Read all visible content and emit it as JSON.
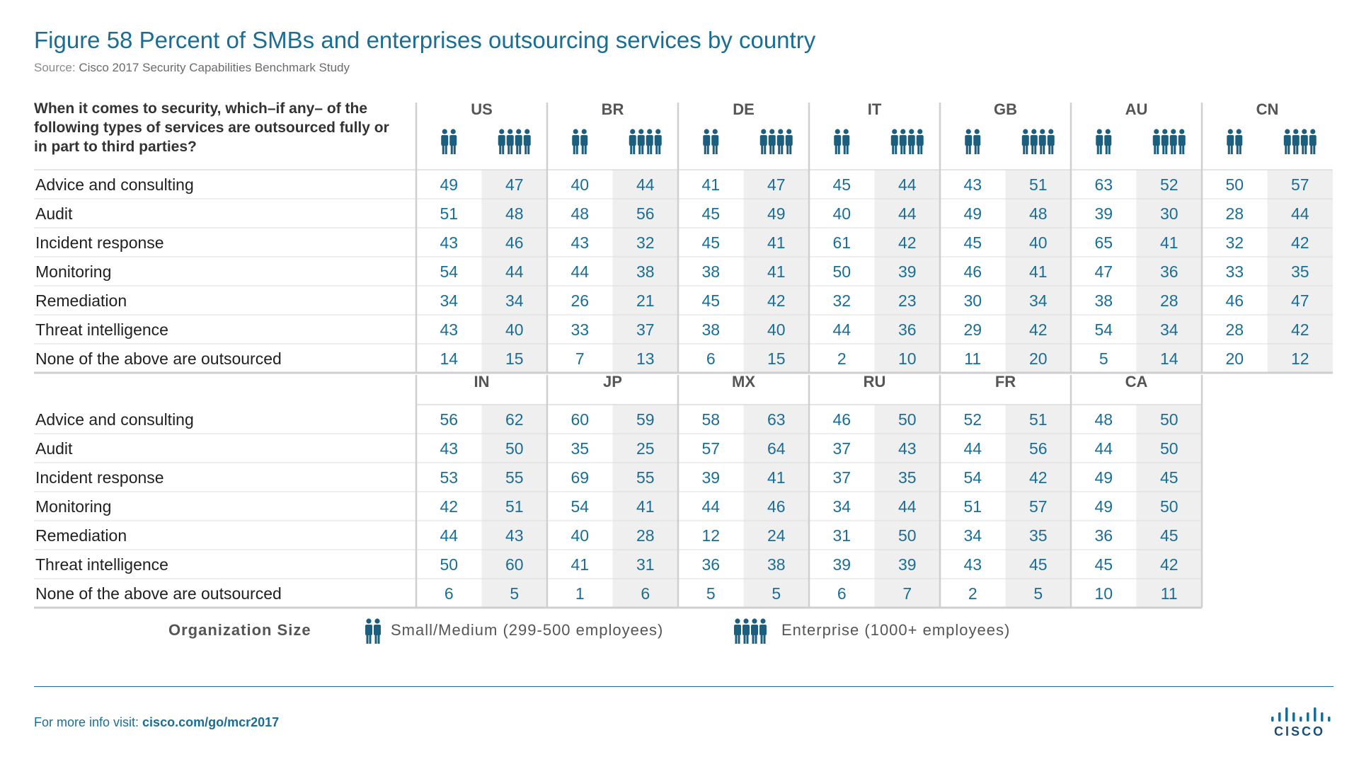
{
  "title": "Figure 58  Percent of SMBs and enterprises outsourcing services by country",
  "source_label": "Source:",
  "source_text": "Cisco 2017 Security Capabilities Benchmark Study",
  "question": "When it comes to security, which–if any– of the following types of services are outsourced fully or in part to third parties?",
  "legend": {
    "label": "Organization Size",
    "small": "Small/Medium (299-500 employees)",
    "enterprise": "Enterprise (1000+ employees)"
  },
  "footer": {
    "prefix": "For more info visit: ",
    "link": "cisco.com/go/mcr2017"
  },
  "logo_text": "CISCO",
  "colors": {
    "accent": "#1a6e96",
    "icon": "#1c5e7e",
    "shade": "#efefef",
    "rule": "#cfcfcf"
  },
  "chart_data": {
    "type": "table",
    "row_labels": [
      "Advice and consulting",
      "Audit",
      "Incident response",
      "Monitoring",
      "Remediation",
      "Threat intelligence",
      "None of the above are outsourced"
    ],
    "series_labels": [
      "Small/Medium (299-500 employees)",
      "Enterprise (1000+ employees)"
    ],
    "panels": [
      {
        "countries": [
          {
            "code": "US",
            "smb": [
              49,
              51,
              43,
              54,
              34,
              43,
              14
            ],
            "ent": [
              47,
              48,
              46,
              44,
              34,
              40,
              15
            ]
          },
          {
            "code": "BR",
            "smb": [
              40,
              48,
              43,
              44,
              26,
              33,
              7
            ],
            "ent": [
              44,
              56,
              32,
              38,
              21,
              37,
              13
            ]
          },
          {
            "code": "DE",
            "smb": [
              41,
              45,
              45,
              38,
              45,
              38,
              6
            ],
            "ent": [
              47,
              49,
              41,
              41,
              42,
              40,
              15
            ]
          },
          {
            "code": "IT",
            "smb": [
              45,
              40,
              61,
              50,
              32,
              44,
              2
            ],
            "ent": [
              44,
              44,
              42,
              39,
              23,
              36,
              10
            ]
          },
          {
            "code": "GB",
            "smb": [
              43,
              49,
              45,
              46,
              30,
              29,
              11
            ],
            "ent": [
              51,
              48,
              40,
              41,
              34,
              42,
              20
            ]
          },
          {
            "code": "AU",
            "smb": [
              63,
              39,
              65,
              47,
              38,
              54,
              5
            ],
            "ent": [
              52,
              30,
              41,
              36,
              28,
              34,
              14
            ]
          },
          {
            "code": "CN",
            "smb": [
              50,
              28,
              32,
              33,
              46,
              28,
              20
            ],
            "ent": [
              57,
              44,
              42,
              35,
              47,
              42,
              12
            ]
          }
        ]
      },
      {
        "countries": [
          {
            "code": "IN",
            "smb": [
              56,
              43,
              53,
              42,
              44,
              50,
              6
            ],
            "ent": [
              62,
              50,
              55,
              51,
              43,
              60,
              5
            ]
          },
          {
            "code": "JP",
            "smb": [
              60,
              35,
              69,
              54,
              40,
              41,
              1
            ],
            "ent": [
              59,
              25,
              55,
              41,
              28,
              31,
              6
            ]
          },
          {
            "code": "MX",
            "smb": [
              58,
              57,
              39,
              44,
              12,
              36,
              5
            ],
            "ent": [
              63,
              64,
              41,
              46,
              24,
              38,
              5
            ]
          },
          {
            "code": "RU",
            "smb": [
              46,
              37,
              37,
              34,
              31,
              39,
              6
            ],
            "ent": [
              50,
              43,
              35,
              44,
              50,
              39,
              7
            ]
          },
          {
            "code": "FR",
            "smb": [
              52,
              44,
              54,
              51,
              34,
              43,
              2
            ],
            "ent": [
              51,
              56,
              42,
              57,
              35,
              45,
              5
            ]
          },
          {
            "code": "CA",
            "smb": [
              48,
              44,
              49,
              49,
              36,
              45,
              10
            ],
            "ent": [
              50,
              50,
              45,
              50,
              45,
              42,
              11
            ]
          }
        ]
      }
    ]
  }
}
